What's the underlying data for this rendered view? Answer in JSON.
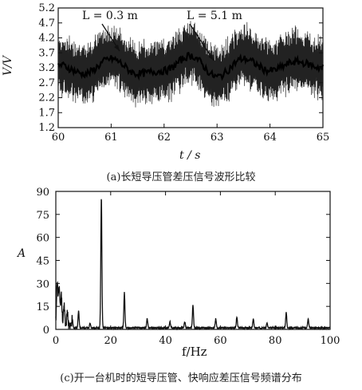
{
  "figure_a": {
    "caption": "(a)长短导压管差压信号波形比较",
    "annotations": [
      "L = 0.3 m",
      "L = 5.1 m"
    ]
  },
  "figure_c": {
    "caption": "(c)开一台机时的短导压管、快响应差压信号频谱分布"
  },
  "chart_data": [
    {
      "type": "line",
      "xlabel": "t / s",
      "ylabel": "V/V",
      "xlim": [
        60,
        65
      ],
      "ylim": [
        1.2,
        5.2
      ],
      "x_ticks": [
        "60",
        "61",
        "62",
        "63",
        "64",
        "65"
      ],
      "y_ticks": [
        "1.2",
        "1.7",
        "2.2",
        "2.7",
        "3.2",
        "3.7",
        "4.2",
        "4.7",
        "5.2"
      ],
      "grid": false,
      "series": [
        {
          "name": "L = 0.3 m",
          "x": [
            60,
            60.5,
            61,
            61.5,
            62,
            62.5,
            63,
            63.5,
            64,
            64.5,
            65
          ],
          "y": [
            3.3,
            3.0,
            3.6,
            3.0,
            3.1,
            3.7,
            2.9,
            3.6,
            3.1,
            3.5,
            3.2
          ],
          "fluctuation": 1.7
        },
        {
          "name": "L = 5.1 m",
          "x": [
            60,
            60.5,
            61,
            61.5,
            62,
            62.5,
            63,
            63.5,
            64,
            64.5,
            65
          ],
          "y": [
            3.3,
            3.0,
            3.5,
            3.0,
            3.1,
            3.6,
            2.9,
            3.5,
            3.1,
            3.4,
            3.2
          ]
        }
      ]
    },
    {
      "type": "line",
      "xlabel": "f/Hz",
      "ylabel": "A",
      "xlim": [
        0,
        100
      ],
      "ylim": [
        0,
        90
      ],
      "x_ticks": [
        "0",
        "20",
        "40",
        "60",
        "80",
        "100"
      ],
      "y_ticks": [
        "0",
        "15",
        "30",
        "45",
        "60",
        "75",
        "90"
      ],
      "grid": false,
      "peaks": [
        {
          "f": 0.5,
          "a": 28
        },
        {
          "f": 1.2,
          "a": 26
        },
        {
          "f": 2.0,
          "a": 20
        },
        {
          "f": 3.0,
          "a": 14
        },
        {
          "f": 4.2,
          "a": 8
        },
        {
          "f": 6.0,
          "a": 6
        },
        {
          "f": 8.3,
          "a": 11
        },
        {
          "f": 12.5,
          "a": 3
        },
        {
          "f": 16.6,
          "a": 85
        },
        {
          "f": 25.0,
          "a": 23
        },
        {
          "f": 33.3,
          "a": 6
        },
        {
          "f": 41.6,
          "a": 4
        },
        {
          "f": 47.0,
          "a": 4
        },
        {
          "f": 50.0,
          "a": 15
        },
        {
          "f": 58.3,
          "a": 6
        },
        {
          "f": 66.0,
          "a": 7
        },
        {
          "f": 72.0,
          "a": 6
        },
        {
          "f": 77.0,
          "a": 3
        },
        {
          "f": 84.0,
          "a": 10
        },
        {
          "f": 92.0,
          "a": 6
        }
      ]
    }
  ]
}
